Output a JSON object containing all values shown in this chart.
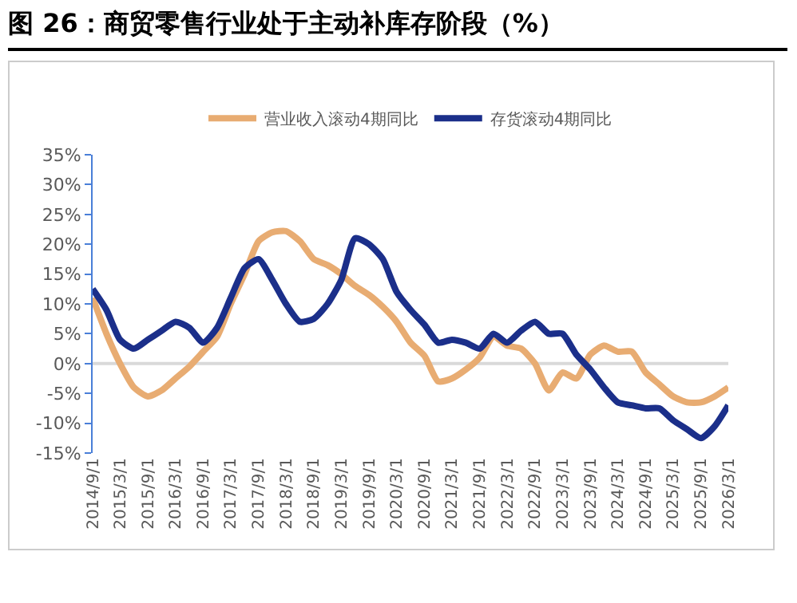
{
  "chart_data": {
    "type": "line",
    "title": "图 26：商贸零售行业处于主动补库存阶段（%）",
    "x": [
      "2014-09-01",
      "2014-12-01",
      "2015-03-01",
      "2015-06-01",
      "2015-09-01",
      "2015-12-01",
      "2016-03-01",
      "2016-06-01",
      "2016-09-01",
      "2016-12-01",
      "2017-03-01",
      "2017-06-01",
      "2017-09-01",
      "2017-12-01",
      "2018-03-01",
      "2018-06-01",
      "2018-09-01",
      "2018-12-01",
      "2019-03-01",
      "2019-06-01",
      "2019-09-01",
      "2019-12-01",
      "2020-03-01",
      "2020-06-01",
      "2020-09-01",
      "2020-12-01",
      "2021-03-01",
      "2021-06-01",
      "2021-09-01",
      "2021-12-01",
      "2022-03-01",
      "2022-06-01",
      "2022-09-01",
      "2022-12-01",
      "2023-03-01",
      "2023-06-01",
      "2023-09-01",
      "2023-12-01",
      "2024-03-01",
      "2024-06-01",
      "2024-09-01",
      "2024-12-01",
      "2025-03-01",
      "2025-06-01",
      "2025-09-01",
      "2025-12-01",
      "2026-03-01"
    ],
    "series": [
      {
        "name": "营业收入滚动4期同比",
        "color": "#e8ac72",
        "values": [
          11,
          5,
          0,
          -4,
          -5.5,
          -4.5,
          -2.5,
          -0.5,
          2,
          4.5,
          10,
          15,
          20.5,
          22,
          22.2,
          20.5,
          17.5,
          16.5,
          15,
          13,
          11.5,
          9.5,
          7,
          3.5,
          1.3,
          -3,
          -2.5,
          -1,
          1,
          4.5,
          3,
          2.5,
          0,
          -4.5,
          -1.5,
          -2.5,
          1.5,
          3,
          2,
          2,
          -1.5,
          -3.5,
          -5.5,
          -6.5,
          -6.5,
          -5.5,
          -4
        ]
      },
      {
        "name": "存货滚动4期同比",
        "color": "#1b2f8a",
        "values": [
          12.5,
          9,
          4,
          2.5,
          4,
          5.5,
          7,
          6,
          3.5,
          6,
          11,
          16,
          17.5,
          14,
          10,
          7,
          7.5,
          10,
          14,
          21,
          20,
          17.5,
          12,
          9,
          6.5,
          3.5,
          4,
          3.5,
          2.5,
          5,
          3.5,
          5.5,
          7,
          5,
          5,
          1.5,
          -1,
          -4,
          -6.5,
          -7,
          -7.5,
          -7.5,
          -9.5,
          -11,
          -12.5,
          -10.5,
          -7
        ]
      }
    ],
    "xlim": [
      "2014-09-01",
      "2026-03-01"
    ],
    "xticks": [
      {
        "value": "2014-09-01",
        "label": "2014/9/1"
      },
      {
        "value": "2015-03-01",
        "label": "2015/3/1"
      },
      {
        "value": "2015-09-01",
        "label": "2015/9/1"
      },
      {
        "value": "2016-03-01",
        "label": "2016/3/1"
      },
      {
        "value": "2016-09-01",
        "label": "2016/9/1"
      },
      {
        "value": "2017-03-01",
        "label": "2017/3/1"
      },
      {
        "value": "2017-09-01",
        "label": "2017/9/1"
      },
      {
        "value": "2018-03-01",
        "label": "2018/3/1"
      },
      {
        "value": "2018-09-01",
        "label": "2018/9/1"
      },
      {
        "value": "2019-03-01",
        "label": "2019/3/1"
      },
      {
        "value": "2019-09-01",
        "label": "2019/9/1"
      },
      {
        "value": "2020-03-01",
        "label": "2020/3/1"
      },
      {
        "value": "2020-09-01",
        "label": "2020/9/1"
      },
      {
        "value": "2021-03-01",
        "label": "2021/3/1"
      },
      {
        "value": "2021-09-01",
        "label": "2021/9/1"
      },
      {
        "value": "2022-03-01",
        "label": "2022/3/1"
      },
      {
        "value": "2022-09-01",
        "label": "2022/9/1"
      },
      {
        "value": "2023-03-01",
        "label": "2023/3/1"
      },
      {
        "value": "2023-09-01",
        "label": "2023/9/1"
      },
      {
        "value": "2024-03-01",
        "label": "2024/3/1"
      },
      {
        "value": "2024-09-01",
        "label": "2024/9/1"
      },
      {
        "value": "2025-03-01",
        "label": "2025/3/1"
      },
      {
        "value": "2025-09-01",
        "label": "2025/9/1"
      },
      {
        "value": "2026-03-01",
        "label": "2026/3/1"
      }
    ],
    "ylim": [
      -15,
      35
    ],
    "yticks": [
      {
        "value": -15,
        "label": "-15%"
      },
      {
        "value": -10,
        "label": "-10%"
      },
      {
        "value": -5,
        "label": "-5%"
      },
      {
        "value": 0,
        "label": "0%"
      },
      {
        "value": 5,
        "label": "5%"
      },
      {
        "value": 10,
        "label": "10%"
      },
      {
        "value": 15,
        "label": "15%"
      },
      {
        "value": 20,
        "label": "20%"
      },
      {
        "value": 25,
        "label": "25%"
      },
      {
        "value": 30,
        "label": "30%"
      },
      {
        "value": 35,
        "label": "35%"
      }
    ],
    "ref_lines": [
      {
        "axis": "y",
        "value": 0,
        "color": "#d9d9d9"
      }
    ],
    "legend": "top",
    "marker": "none",
    "line_style": "solid",
    "grid": false
  }
}
